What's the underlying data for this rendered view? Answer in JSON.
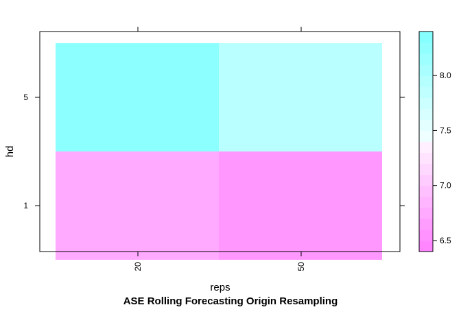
{
  "chart_data": {
    "type": "heatmap",
    "title": "ASE Rolling Forecasting Origin Resampling",
    "xlabel": "reps",
    "ylabel": "hd",
    "x_categories": [
      "20",
      "50"
    ],
    "y_categories": [
      "1",
      "5"
    ],
    "cells": [
      {
        "x": "20",
        "y": "1",
        "value": 6.75
      },
      {
        "x": "50",
        "y": "1",
        "value": 6.6
      },
      {
        "x": "20",
        "y": "5",
        "value": 8.3
      },
      {
        "x": "50",
        "y": "5",
        "value": 7.9
      }
    ],
    "colorbar": {
      "range": [
        6.4,
        8.4
      ],
      "ticks": [
        "6.5",
        "7.0",
        "7.5",
        "8.0"
      ],
      "low_color": "#ff80ff",
      "high_color": "#80ffff"
    }
  }
}
